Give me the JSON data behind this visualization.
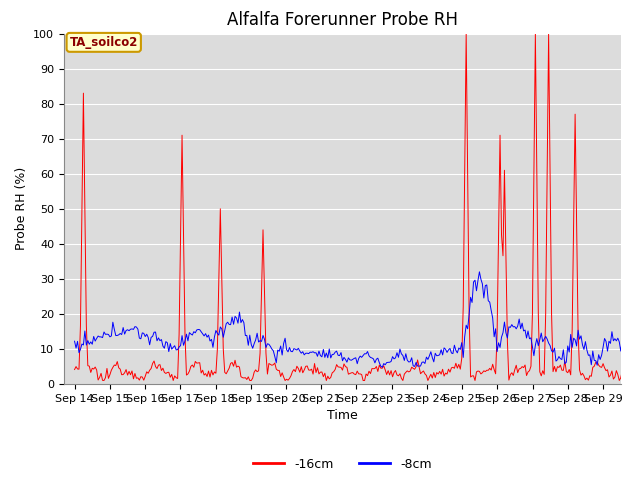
{
  "title": "Alfalfa Forerunner Probe RH",
  "ylabel": "Probe RH (%)",
  "xlabel": "Time",
  "ylim": [
    0,
    100
  ],
  "xtick_labels": [
    "Sep 14",
    "Sep 15",
    "Sep 16",
    "Sep 17",
    "Sep 18",
    "Sep 19",
    "Sep 20",
    "Sep 21",
    "Sep 22",
    "Sep 23",
    "Sep 24",
    "Sep 25",
    "Sep 26",
    "Sep 27",
    "Sep 28",
    "Sep 29"
  ],
  "legend_label1": "-16cm",
  "legend_label2": "-8cm",
  "color_red": "#FF0000",
  "color_blue": "#0000FF",
  "plot_bg": "#DCDCDC",
  "annotation_text": "TA_soilco2",
  "annotation_bg": "#FFFFCC",
  "annotation_border": "#CC9900",
  "title_fontsize": 12,
  "axis_fontsize": 9,
  "tick_fontsize": 8
}
